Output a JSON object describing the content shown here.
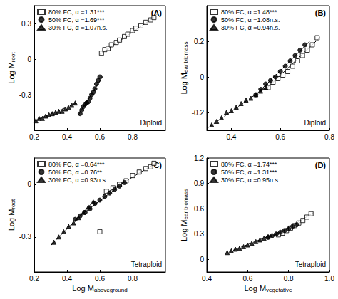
{
  "chart_data": [
    {
      "type": "scatter",
      "panel": "(A)",
      "annotation": "Diploid",
      "ylabel": "Log Mroot",
      "xlim": [
        0.2,
        1.0
      ],
      "xticks": [
        0.2,
        0.4,
        0.6,
        0.8
      ],
      "ylim": [
        -0.6,
        0.45
      ],
      "yticks": [
        -0.3,
        0,
        0.3
      ],
      "grid": false,
      "legend": "upper left",
      "series": [
        {
          "name": "80% FC, α =1.31***",
          "color": "#000000",
          "marker": "open-square",
          "line_style": "solid",
          "x": [
            0.61,
            0.63,
            0.65,
            0.67,
            0.7,
            0.72,
            0.75,
            0.77,
            0.8,
            0.82,
            0.85,
            0.88,
            0.91,
            0.93
          ],
          "values": [
            0.05,
            0.08,
            0.09,
            0.12,
            0.14,
            0.16,
            0.19,
            0.21,
            0.24,
            0.26,
            0.28,
            0.31,
            0.33,
            0.35
          ],
          "fit": {
            "x": [
              0.6,
              0.93
            ],
            "values": [
              0.04,
              0.35
            ]
          }
        },
        {
          "name": "50% FC, α =1.69***",
          "color": "#000000",
          "marker": "circle",
          "line_style": "solid",
          "x": [
            0.48,
            0.49,
            0.5,
            0.51,
            0.52,
            0.53,
            0.54,
            0.55,
            0.56,
            0.57,
            0.58,
            0.59,
            0.6
          ],
          "values": [
            -0.46,
            -0.43,
            -0.4,
            -0.38,
            -0.37,
            -0.36,
            -0.33,
            -0.3,
            -0.28,
            -0.25,
            -0.21,
            -0.18,
            -0.15
          ],
          "fit": {
            "x": [
              0.47,
              0.62
            ],
            "values": [
              -0.47,
              -0.14
            ]
          }
        },
        {
          "name": "30% FC, α =1.07n.s.",
          "color": "#000000",
          "marker": "triangle",
          "line_style": "dashed",
          "x": [
            0.21,
            0.23,
            0.25,
            0.27,
            0.29,
            0.31,
            0.33,
            0.35,
            0.37,
            0.39,
            0.41,
            0.43,
            0.45
          ],
          "values": [
            -0.52,
            -0.5,
            -0.5,
            -0.48,
            -0.47,
            -0.46,
            -0.45,
            -0.44,
            -0.44,
            -0.42,
            -0.41,
            -0.39,
            -0.37
          ],
          "fit": {
            "x": [
              0.2,
              0.46
            ],
            "values": [
              -0.52,
              -0.37
            ]
          }
        }
      ]
    },
    {
      "type": "scatter",
      "panel": "(B)",
      "annotation": "Diploid",
      "ylabel": "Log Mear biomass",
      "xlim": [
        0.3,
        0.8
      ],
      "xticks": [
        0.4,
        0.6,
        0.8
      ],
      "ylim": [
        -0.3,
        0.4
      ],
      "yticks": [
        -0.2,
        0,
        0.2
      ],
      "grid": false,
      "legend": "upper left",
      "series": [
        {
          "name": "80% FC, α =1.48***",
          "color": "#000000",
          "marker": "open-square",
          "line_style": "solid",
          "x": [
            0.55,
            0.57,
            0.59,
            0.61,
            0.63,
            0.65,
            0.67,
            0.69,
            0.71,
            0.73,
            0.75
          ],
          "values": [
            -0.06,
            -0.03,
            -0.01,
            0.01,
            0.03,
            0.06,
            0.09,
            0.12,
            0.15,
            0.18,
            0.22
          ],
          "fit": {
            "x": [
              0.54,
              0.76
            ],
            "values": [
              -0.07,
              0.22
            ]
          }
        },
        {
          "name": "50% FC, α =1.08n.s.",
          "color": "#000000",
          "marker": "circle",
          "line_style": "solid",
          "x": [
            0.5,
            0.52,
            0.54,
            0.56,
            0.58,
            0.6,
            0.62,
            0.64,
            0.66,
            0.68,
            0.7
          ],
          "values": [
            -0.1,
            -0.07,
            -0.04,
            -0.02,
            0.0,
            0.03,
            0.06,
            0.09,
            0.12,
            0.15,
            0.18
          ],
          "fit": {
            "x": [
              0.5,
              0.72
            ],
            "values": [
              -0.1,
              0.2
            ]
          }
        },
        {
          "name": "30% FC, α =0.94n.s.",
          "color": "#000000",
          "marker": "triangle",
          "line_style": "dashed",
          "x": [
            0.32,
            0.34,
            0.36,
            0.38,
            0.4,
            0.42,
            0.44,
            0.46,
            0.48,
            0.5,
            0.52,
            0.54
          ],
          "values": [
            -0.27,
            -0.25,
            -0.23,
            -0.2,
            -0.19,
            -0.17,
            -0.15,
            -0.13,
            -0.12,
            -0.1,
            -0.08,
            -0.06
          ],
          "fit": {
            "x": [
              0.3,
              0.56
            ],
            "values": [
              -0.29,
              -0.04
            ]
          }
        }
      ]
    },
    {
      "type": "scatter",
      "panel": "(C)",
      "annotation": "Tetraploid",
      "ylabel": "Log Mroot",
      "xlabel": "Log Maboveground",
      "xlim": [
        0.2,
        1.0
      ],
      "xticks": [
        0.2,
        0.4,
        0.6,
        0.8
      ],
      "ylim": [
        -0.5,
        0.15
      ],
      "yticks": [
        -0.3,
        0
      ],
      "grid": false,
      "legend": "upper left",
      "series": [
        {
          "name": "80% FC, α =0.64***",
          "color": "#000000",
          "marker": "open-square",
          "line_style": "solid",
          "x": [
            0.6,
            0.64,
            0.68,
            0.72,
            0.76,
            0.8,
            0.84,
            0.88,
            0.91,
            0.93
          ],
          "values": [
            -0.27,
            -0.04,
            -0.02,
            0.0,
            0.02,
            0.05,
            0.07,
            0.09,
            0.1,
            0.12
          ],
          "fit": {
            "x": [
              0.62,
              0.94
            ],
            "values": [
              -0.06,
              0.12
            ]
          }
        },
        {
          "name": "50% FC, α =0.76**",
          "color": "#000000",
          "marker": "circle",
          "line_style": "solid",
          "x": [
            0.45,
            0.48,
            0.51,
            0.54,
            0.57,
            0.6,
            0.63,
            0.66,
            0.69,
            0.72,
            0.75
          ],
          "values": [
            -0.2,
            -0.18,
            -0.16,
            -0.14,
            -0.11,
            -0.09,
            -0.07,
            -0.05,
            -0.03,
            -0.01,
            0.01
          ],
          "fit": {
            "x": [
              0.45,
              0.76
            ],
            "values": [
              -0.2,
              0.02
            ]
          }
        },
        {
          "name": "30% FC, α =0.93n.s.",
          "color": "#000000",
          "marker": "triangle",
          "line_style": "dashed",
          "x": [
            0.32,
            0.35,
            0.38,
            0.41,
            0.44,
            0.47,
            0.5,
            0.53,
            0.56
          ],
          "values": [
            -0.33,
            -0.3,
            -0.27,
            -0.24,
            -0.22,
            -0.19,
            -0.16,
            -0.13,
            -0.1
          ],
          "fit": {
            "x": [
              0.3,
              0.57
            ],
            "values": [
              -0.35,
              -0.09
            ]
          }
        }
      ]
    },
    {
      "type": "scatter",
      "panel": "(D)",
      "annotation": "Tetraploid",
      "ylabel": "Log Mear biomass",
      "xlabel": "Log Mvegetative",
      "xlim": [
        0.4,
        1.0
      ],
      "xticks": [
        0.4,
        0.6,
        0.8,
        {
          "value": 1,
          "label": "1.0"
        }
      ],
      "ylim": [
        -0.15,
        1.2
      ],
      "yticks": [
        0,
        0.3,
        0.6,
        0.9,
        1.2
      ],
      "grid": false,
      "legend": "upper left",
      "series": [
        {
          "name": "80% FC, α =1.74***",
          "color": "#000000",
          "marker": "open-square",
          "line_style": "solid",
          "x": [
            0.75,
            0.77,
            0.79,
            0.81,
            0.83,
            0.85,
            0.87,
            0.89,
            0.91
          ],
          "values": [
            0.29,
            0.31,
            0.34,
            0.37,
            0.4,
            0.43,
            0.46,
            0.5,
            0.54
          ],
          "fit": {
            "x": [
              0.74,
              0.92
            ],
            "values": [
              0.28,
              0.55
            ]
          }
        },
        {
          "name": "50% FC, α =1.31***",
          "color": "#000000",
          "marker": "circle",
          "line_style": "solid",
          "x": [
            0.7,
            0.72,
            0.74,
            0.76,
            0.78,
            0.8,
            0.82,
            0.84
          ],
          "values": [
            0.26,
            0.28,
            0.3,
            0.32,
            0.34,
            0.36,
            0.39,
            0.41
          ],
          "fit": {
            "x": [
              0.7,
              0.86
            ],
            "values": [
              0.25,
              0.44
            ]
          }
        },
        {
          "name": "30% FC, α =0.95n.s.",
          "color": "#000000",
          "marker": "triangle",
          "line_style": "dashed",
          "x": [
            0.5,
            0.52,
            0.54,
            0.56,
            0.58,
            0.6,
            0.62,
            0.64,
            0.66,
            0.68,
            0.7
          ],
          "values": [
            0.08,
            0.1,
            0.12,
            0.13,
            0.15,
            0.17,
            0.19,
            0.21,
            0.23,
            0.25,
            0.27
          ],
          "fit": {
            "x": [
              0.49,
              0.72
            ],
            "values": [
              0.07,
              0.29
            ]
          }
        }
      ]
    }
  ]
}
